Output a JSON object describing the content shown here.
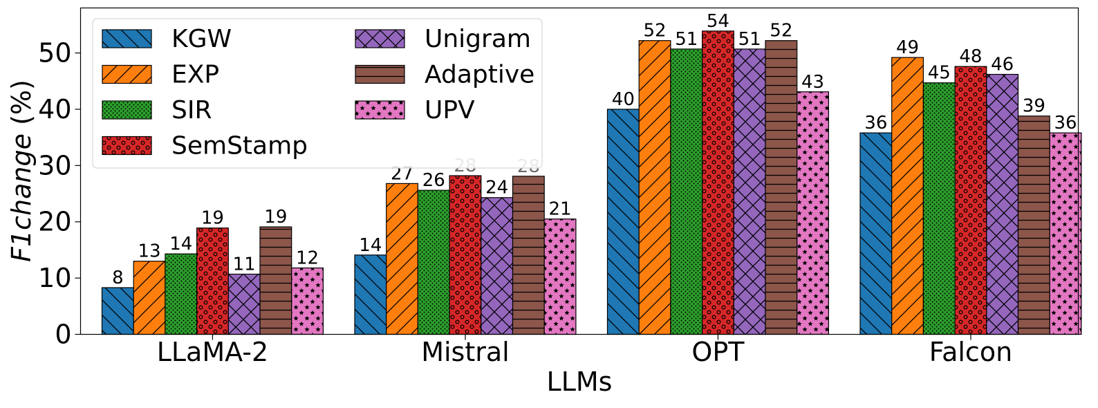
{
  "chart_data": {
    "type": "bar",
    "categories": [
      "LLaMA-2",
      "Mistral",
      "OPT",
      "Falcon"
    ],
    "xlabel": "LLMs",
    "ylabel_italic": "F1change",
    "ylabel_suffix": " (%)",
    "ylim": [
      0,
      58
    ],
    "yticks": [
      0,
      10,
      20,
      30,
      40,
      50
    ],
    "grid": false,
    "legend_position": "top-left",
    "series": [
      {
        "name": "KGW",
        "color": "#1f77b4",
        "hatch": "diag-back",
        "values": [
          8.3,
          14.1,
          40.0,
          35.8
        ],
        "labels": [
          "8",
          "14",
          "40",
          "36"
        ]
      },
      {
        "name": "EXP",
        "color": "#ff7f0e",
        "hatch": "diag-fwd",
        "values": [
          13.0,
          26.8,
          52.2,
          49.2
        ],
        "labels": [
          "13",
          "27",
          "52",
          "49"
        ]
      },
      {
        "name": "SIR",
        "color": "#2ca02c",
        "hatch": "dots",
        "values": [
          14.3,
          25.6,
          50.7,
          44.7
        ],
        "labels": [
          "14",
          "26",
          "51",
          "45"
        ]
      },
      {
        "name": "SemStamp",
        "color": "#d62728",
        "hatch": "circles",
        "values": [
          18.9,
          28.2,
          53.9,
          47.6
        ],
        "labels": [
          "19",
          "28",
          "54",
          "48"
        ]
      },
      {
        "name": "Unigram",
        "color": "#9467bd",
        "hatch": "cross",
        "values": [
          10.7,
          24.3,
          50.7,
          46.2
        ],
        "labels": [
          "11",
          "24",
          "51",
          "46"
        ]
      },
      {
        "name": "Adaptive",
        "color": "#8c564b",
        "hatch": "horiz",
        "values": [
          19.1,
          28.1,
          52.2,
          38.8
        ],
        "labels": [
          "19",
          "28",
          "52",
          "39"
        ]
      },
      {
        "name": "UPV",
        "color": "#e377c2",
        "hatch": "stars",
        "values": [
          11.8,
          20.5,
          43.1,
          35.8
        ],
        "labels": [
          "12",
          "21",
          "43",
          "36"
        ]
      }
    ],
    "gray_labels": [
      [
        1,
        3
      ],
      [
        1,
        5
      ]
    ]
  }
}
